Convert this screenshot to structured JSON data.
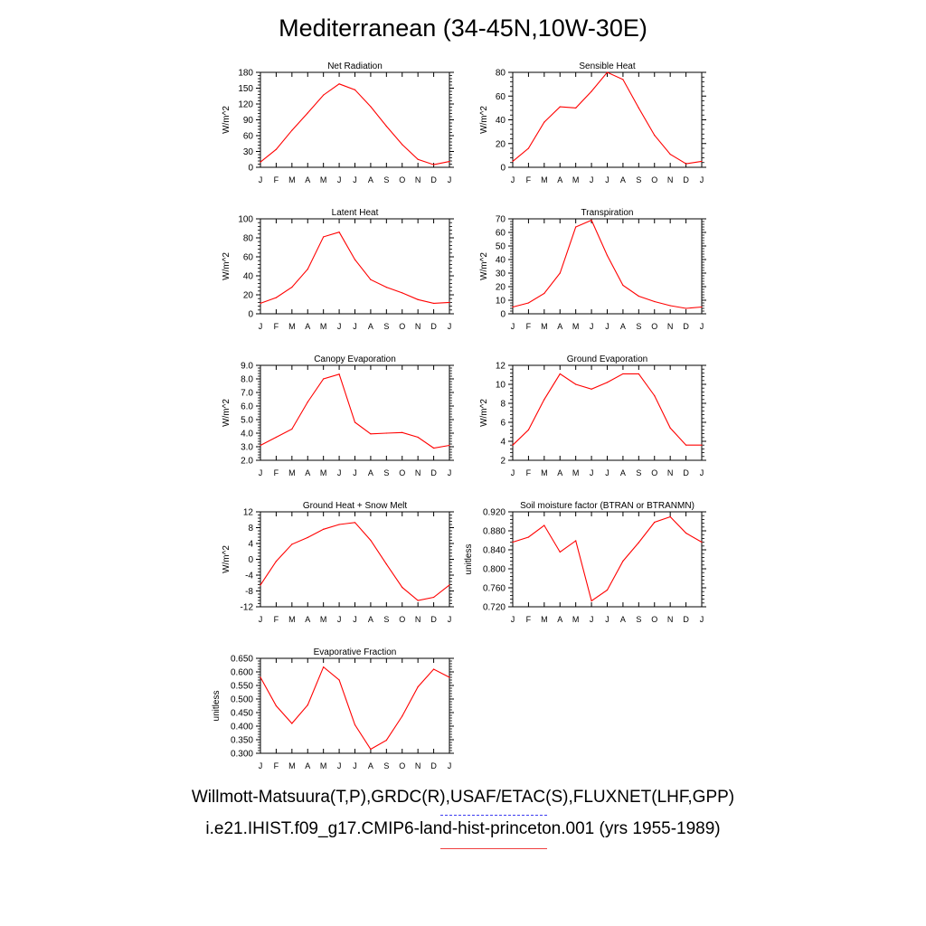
{
  "title": "Mediterranean (34-45N,10W-30E)",
  "captions": {
    "line1": "Willmott-Matsuura(T,P),GRDC(R),USAF/ETAC(S),FLUXNET(LHF,GPP)",
    "line2": "i.e21.IHIST.f09_g17.CMIP6-land-hist-princeton.001 (yrs 1955-1989)"
  },
  "colors": {
    "model_line": "#ff0000",
    "obs_legend_line": "#3c3cf0",
    "model_legend_line": "#f04040",
    "axes": "#000000"
  },
  "chart_data": [
    {
      "type": "line",
      "title": "Net Radiation",
      "ylabel": "W/m^2",
      "categories": [
        "J",
        "F",
        "M",
        "A",
        "M",
        "J",
        "J",
        "A",
        "S",
        "O",
        "N",
        "D",
        "J"
      ],
      "ylim": [
        0,
        180
      ],
      "yticks": [
        "0",
        "30",
        "60",
        "90",
        "120",
        "150",
        "180"
      ],
      "series": [
        {
          "values": [
            10,
            34,
            70,
            103,
            137,
            158,
            147,
            115,
            78,
            43,
            15,
            5,
            11
          ]
        }
      ]
    },
    {
      "type": "line",
      "title": "Sensible Heat",
      "ylabel": "W/m^2",
      "categories": [
        "J",
        "F",
        "M",
        "A",
        "M",
        "J",
        "J",
        "A",
        "S",
        "O",
        "N",
        "D",
        "J"
      ],
      "ylim": [
        0,
        80
      ],
      "yticks": [
        "0",
        "20",
        "40",
        "60",
        "80"
      ],
      "series": [
        {
          "values": [
            5,
            16,
            38,
            51,
            50,
            64,
            80,
            74,
            50,
            27,
            11,
            3,
            5
          ]
        }
      ]
    },
    {
      "type": "line",
      "title": "Latent Heat",
      "ylabel": "W/m^2",
      "categories": [
        "J",
        "F",
        "M",
        "A",
        "M",
        "J",
        "J",
        "A",
        "S",
        "O",
        "N",
        "D",
        "J"
      ],
      "ylim": [
        0,
        100
      ],
      "yticks": [
        "0",
        "20",
        "40",
        "60",
        "80",
        "100"
      ],
      "series": [
        {
          "values": [
            11,
            17,
            28,
            47,
            81,
            86,
            57,
            36,
            28,
            22,
            15,
            11,
            12
          ]
        }
      ]
    },
    {
      "type": "line",
      "title": "Transpiration",
      "ylabel": "W/m^2",
      "categories": [
        "J",
        "F",
        "M",
        "A",
        "M",
        "J",
        "J",
        "A",
        "S",
        "O",
        "N",
        "D",
        "J"
      ],
      "ylim": [
        0,
        70
      ],
      "yticks": [
        "0",
        "10",
        "20",
        "30",
        "40",
        "50",
        "60",
        "70"
      ],
      "series": [
        {
          "values": [
            5,
            8,
            15,
            30,
            64,
            69,
            43,
            21,
            13,
            9,
            6,
            4,
            5
          ]
        }
      ]
    },
    {
      "type": "line",
      "title": "Canopy Evaporation",
      "ylabel": "W/m^2",
      "categories": [
        "J",
        "F",
        "M",
        "A",
        "M",
        "J",
        "J",
        "A",
        "S",
        "O",
        "N",
        "D",
        "J"
      ],
      "ylim": [
        2,
        9
      ],
      "yticks": [
        "2.0",
        "3.0",
        "4.0",
        "5.0",
        "6.0",
        "7.0",
        "8.0",
        "9.0"
      ],
      "series": [
        {
          "values": [
            3.1,
            3.7,
            4.3,
            6.3,
            8.0,
            8.35,
            4.8,
            3.95,
            4.0,
            4.05,
            3.7,
            2.9,
            3.1
          ]
        }
      ]
    },
    {
      "type": "line",
      "title": "Ground Evaporation",
      "ylabel": "W/m^2",
      "categories": [
        "J",
        "F",
        "M",
        "A",
        "M",
        "J",
        "J",
        "A",
        "S",
        "O",
        "N",
        "D",
        "J"
      ],
      "ylim": [
        2,
        12
      ],
      "yticks": [
        "2",
        "4",
        "6",
        "8",
        "10",
        "12"
      ],
      "series": [
        {
          "values": [
            3.6,
            5.2,
            8.4,
            11.1,
            10.0,
            9.5,
            10.2,
            11.1,
            11.1,
            8.8,
            5.4,
            3.6,
            3.6
          ]
        }
      ]
    },
    {
      "type": "line",
      "title": "Ground Heat + Snow Melt",
      "ylabel": "W/m^2",
      "categories": [
        "J",
        "F",
        "M",
        "A",
        "M",
        "J",
        "J",
        "A",
        "S",
        "O",
        "N",
        "D",
        "J"
      ],
      "ylim": [
        -12,
        12
      ],
      "yticks": [
        "-12",
        "-8",
        "-4",
        "0",
        "4",
        "8",
        "12"
      ],
      "series": [
        {
          "values": [
            -6.5,
            -0.5,
            3.8,
            5.5,
            7.6,
            8.8,
            9.3,
            4.8,
            -1.2,
            -7.1,
            -10.4,
            -9.6,
            -6.5
          ]
        }
      ]
    },
    {
      "type": "line",
      "title": "Soil moisture factor (BTRAN or BTRANMN)",
      "ylabel": "unitless",
      "categories": [
        "J",
        "F",
        "M",
        "A",
        "M",
        "J",
        "J",
        "A",
        "S",
        "O",
        "N",
        "D",
        "J"
      ],
      "ylim": [
        0.72,
        0.93
      ],
      "yticks": [
        "0.720",
        "0.760",
        "0.800",
        "0.840",
        "0.880",
        "0.920"
      ],
      "series": [
        {
          "values": [
            0.863,
            0.874,
            0.9,
            0.841,
            0.866,
            0.733,
            0.757,
            0.821,
            0.862,
            0.907,
            0.919,
            0.883,
            0.863
          ]
        }
      ]
    },
    {
      "type": "line",
      "title": "Evaporative Fraction",
      "ylabel": "unitless",
      "categories": [
        "J",
        "F",
        "M",
        "A",
        "M",
        "J",
        "J",
        "A",
        "S",
        "O",
        "N",
        "D",
        "J"
      ],
      "ylim": [
        0.3,
        0.65
      ],
      "yticks": [
        "0.300",
        "0.350",
        "0.400",
        "0.450",
        "0.500",
        "0.550",
        "0.600",
        "0.650"
      ],
      "series": [
        {
          "values": [
            0.58,
            0.475,
            0.41,
            0.478,
            0.618,
            0.57,
            0.405,
            0.315,
            0.348,
            0.437,
            0.545,
            0.61,
            0.58
          ]
        }
      ]
    }
  ]
}
